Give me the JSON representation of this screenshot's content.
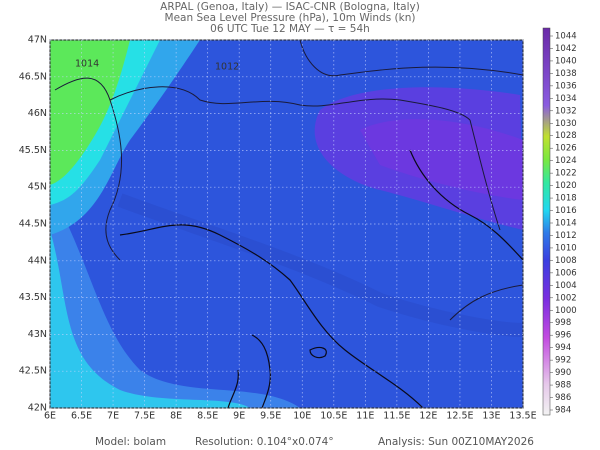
{
  "header": {
    "line1": "ARPAL (Genoa, Italy)  —  ISAC-CNR (Bologna, Italy)",
    "line2": "Mean Sea Level Pressure (hPa), 10m Winds (kn)",
    "line3": "06 UTC Tue 12 MAY  —  τ = 54h"
  },
  "map": {
    "lat_range": [
      42,
      47
    ],
    "lon_range": [
      6,
      13.5
    ],
    "lat_ticks": [
      {
        "value": 47,
        "label": "47N"
      },
      {
        "value": 46.5,
        "label": "46.5N"
      },
      {
        "value": 46,
        "label": "46N"
      },
      {
        "value": 45.5,
        "label": "45.5N"
      },
      {
        "value": 45,
        "label": "45N"
      },
      {
        "value": 44.5,
        "label": "44.5N"
      },
      {
        "value": 44,
        "label": "44N"
      },
      {
        "value": 43.5,
        "label": "43.5N"
      },
      {
        "value": 43,
        "label": "43N"
      },
      {
        "value": 42.5,
        "label": "42.5N"
      },
      {
        "value": 42,
        "label": "42N"
      }
    ],
    "lon_ticks": [
      {
        "value": 6,
        "label": "6E"
      },
      {
        "value": 6.5,
        "label": "6.5E"
      },
      {
        "value": 7,
        "label": "7E"
      },
      {
        "value": 7.5,
        "label": "7.5E"
      },
      {
        "value": 8,
        "label": "8E"
      },
      {
        "value": 8.5,
        "label": "8.5E"
      },
      {
        "value": 9,
        "label": "9E"
      },
      {
        "value": 9.5,
        "label": "9.5E"
      },
      {
        "value": 10,
        "label": "10E"
      },
      {
        "value": 10.5,
        "label": "10.5E"
      },
      {
        "value": 11,
        "label": "11E"
      },
      {
        "value": 11.5,
        "label": "11.5E"
      },
      {
        "value": 12,
        "label": "12E"
      },
      {
        "value": 12.5,
        "label": "12.5E"
      },
      {
        "value": 13,
        "label": "13E"
      },
      {
        "value": 13.5,
        "label": "13.5E"
      }
    ],
    "isobar_labels": [
      "1014",
      "1012"
    ]
  },
  "colorbar": {
    "levels": [
      984,
      986,
      988,
      990,
      992,
      994,
      996,
      998,
      1000,
      1002,
      1004,
      1006,
      1008,
      1010,
      1012,
      1014,
      1016,
      1018,
      1020,
      1022,
      1024,
      1026,
      1028,
      1030,
      1032,
      1034,
      1036,
      1038,
      1040,
      1042,
      1044
    ]
  },
  "footer": {
    "model": "Model: bolam",
    "resolution": "Resolution: 0.104°x0.074°",
    "analysis": "Analysis: Sun 00Z10MAY2026"
  }
}
